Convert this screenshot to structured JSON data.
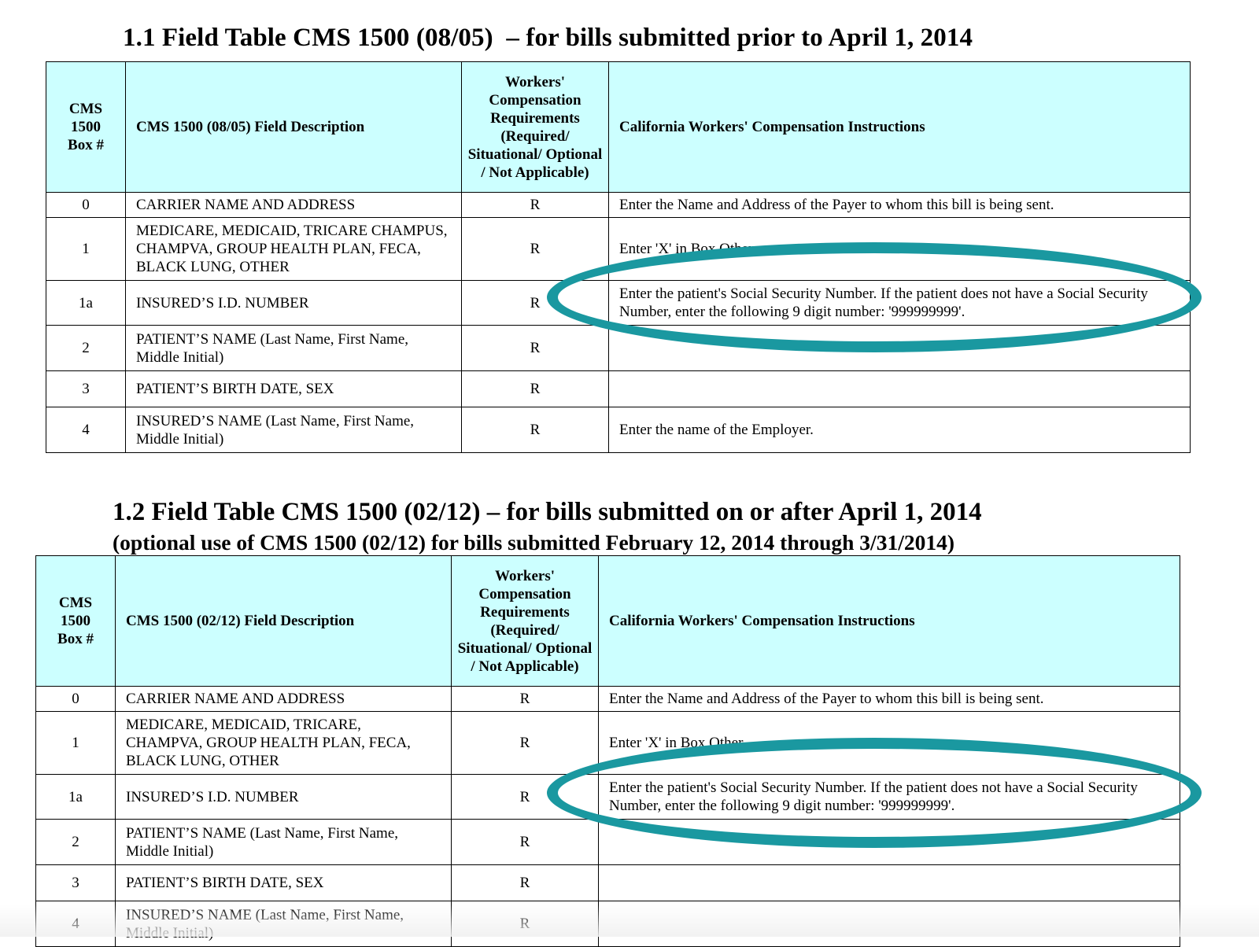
{
  "table1": {
    "title": "1.1 Field Table CMS 1500 (08/05)  – for bills submitted prior to April 1, 2014",
    "headers": {
      "box": "CMS 1500 Box #",
      "desc": "CMS 1500 (08/05) Field Description",
      "req": "Workers' Compensation Requirements (Required/ Situational/ Optional / Not Applicable)",
      "inst": "California Workers' Compensation Instructions"
    },
    "rows": [
      {
        "box": "0",
        "desc": "CARRIER NAME AND ADDRESS",
        "req": "R",
        "inst": "Enter the Name and Address of the Payer to whom this bill is being sent."
      },
      {
        "box": "1",
        "desc": "MEDICARE, MEDICAID, TRICARE CHAMPUS, CHAMPVA, GROUP HEALTH PLAN, FECA, BLACK LUNG, OTHER",
        "req": "R",
        "inst": "Enter 'X' in Box Other."
      },
      {
        "box": "1a",
        "desc": "INSURED’S I.D. NUMBER",
        "req": "R",
        "inst": "Enter the patient's Social Security Number. If the patient does not have a Social Security Number, enter the following 9 digit number: '999999999'."
      },
      {
        "box": "2",
        "desc": "PATIENT’S NAME (Last Name, First Name, Middle Initial)",
        "req": "R",
        "inst": ""
      },
      {
        "box": "3",
        "desc": "PATIENT’S BIRTH DATE, SEX",
        "req": "R",
        "inst": ""
      },
      {
        "box": "4",
        "desc": "INSURED’S NAME (Last Name, First Name, Middle Initial)",
        "req": "R",
        "inst": "Enter the name of the Employer."
      }
    ]
  },
  "table2": {
    "title": "1.2 Field Table CMS 1500 (02/12) – for bills submitted on or after April 1, 2014",
    "subtitle": "(optional use of CMS 1500 (02/12) for bills submitted February 12, 2014 through 3/31/2014)",
    "headers": {
      "box": "CMS 1500 Box #",
      "desc": "CMS 1500 (02/12) Field Description",
      "req": "Workers' Compensation Requirements (Required/ Situational/ Optional / Not Applicable)",
      "inst": "California Workers' Compensation Instructions"
    },
    "rows": [
      {
        "box": "0",
        "desc": "CARRIER NAME AND ADDRESS",
        "req": "R",
        "inst": "Enter the Name and Address of the Payer to whom this bill is being sent."
      },
      {
        "box": "1",
        "desc": "MEDICARE, MEDICAID, TRICARE, CHAMPVA, GROUP HEALTH PLAN, FECA, BLACK LUNG, OTHER",
        "req": "R",
        "inst": "Enter 'X' in Box Other."
      },
      {
        "box": "1a",
        "desc": "INSURED’S I.D. NUMBER",
        "req": "R",
        "inst": "Enter the patient's Social Security Number. If the patient does not have a Social Security Number, enter the following 9 digit number: '999999999'."
      },
      {
        "box": "2",
        "desc": "PATIENT’S NAME (Last Name, First Name, Middle Initial)",
        "req": "R",
        "inst": ""
      },
      {
        "box": "3",
        "desc": "PATIENT’S BIRTH DATE, SEX",
        "req": "R",
        "inst": ""
      },
      {
        "box": "4",
        "desc": "INSURED’S NAME (Last Name, First Name, Middle Initial)",
        "req": "R",
        "inst": ""
      }
    ]
  },
  "colors": {
    "header_bg": "#ccffff",
    "highlight_ellipse": "#1a98a0"
  }
}
